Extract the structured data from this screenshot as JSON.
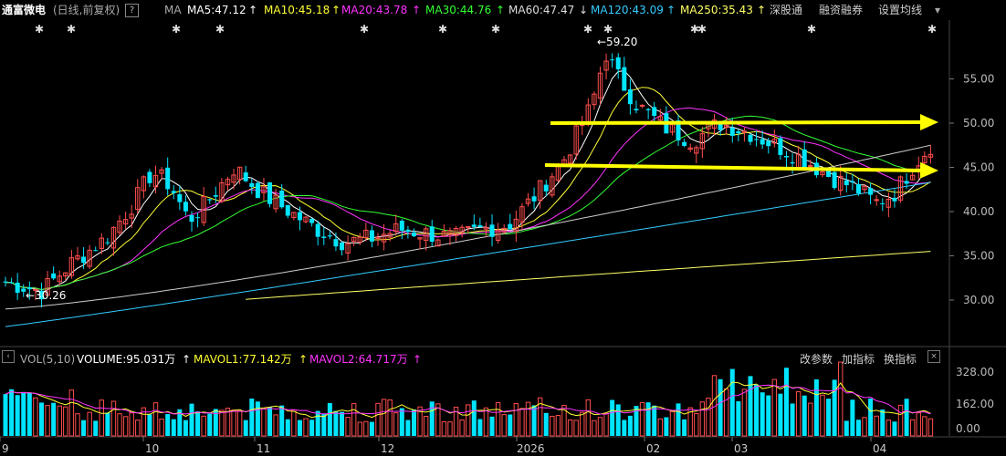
{
  "header": {
    "stock_name": "通富微电",
    "mode": "(日线,前复权)",
    "help_icon": "?",
    "ma_label": "MA",
    "ma5": "MA5:47.12",
    "ma10": "MA10:45.18",
    "ma20": "MA20:43.78",
    "ma30": "MA30:44.76",
    "ma60": "MA60:47.47",
    "ma120": "MA120:43.09",
    "ma250": "MA250:35.43",
    "ma5_arrow": "↑",
    "ma10_arrow": "↑",
    "ma20_arrow": "↑",
    "ma30_arrow": "↑",
    "ma60_arrow": "↓",
    "ma120_arrow": "↑",
    "ma250_arrow": "↑",
    "tab1": "深股通",
    "tab2": "融资融券",
    "settings": "设置均线",
    "arrow_down": "▾"
  },
  "colors": {
    "up": "#ff4d4d",
    "down": "#00e5ff",
    "ma5": "#ffffff",
    "ma10": "#ffff33",
    "ma20": "#ff33ff",
    "ma30": "#33ff33",
    "ma60": "#cccccc",
    "ma120": "#33ccff",
    "ma250": "#ffff66",
    "yellow_arrow": "#ffff00"
  },
  "price_axis": {
    "ticks": [
      "55.00",
      "50.00",
      "45.00",
      "40.00",
      "35.00",
      "30.00"
    ]
  },
  "annotations": {
    "high": "59.20",
    "low": "30.26"
  },
  "volume_bar": {
    "vol_label": "VOL(5,10)",
    "volume": "VOLUME:95.031万",
    "mavol1": "MAVOL1:77.142万",
    "mavol2": "MAVOL2:64.717万",
    "arrow": "↑",
    "btn1": "改参数",
    "btn2": "加指标",
    "btn3": "换指标"
  },
  "volume_axis": {
    "ticks": [
      "328.00",
      "162.00",
      "0.00"
    ]
  },
  "time_axis": {
    "labels": [
      "9",
      "10",
      "11",
      "12",
      "2026",
      "02",
      "03",
      "04"
    ]
  },
  "chart_data": {
    "type": "candlestick",
    "price_range": [
      26,
      62
    ],
    "notes": "approximate daily candles reconstructed from screenshot"
  }
}
